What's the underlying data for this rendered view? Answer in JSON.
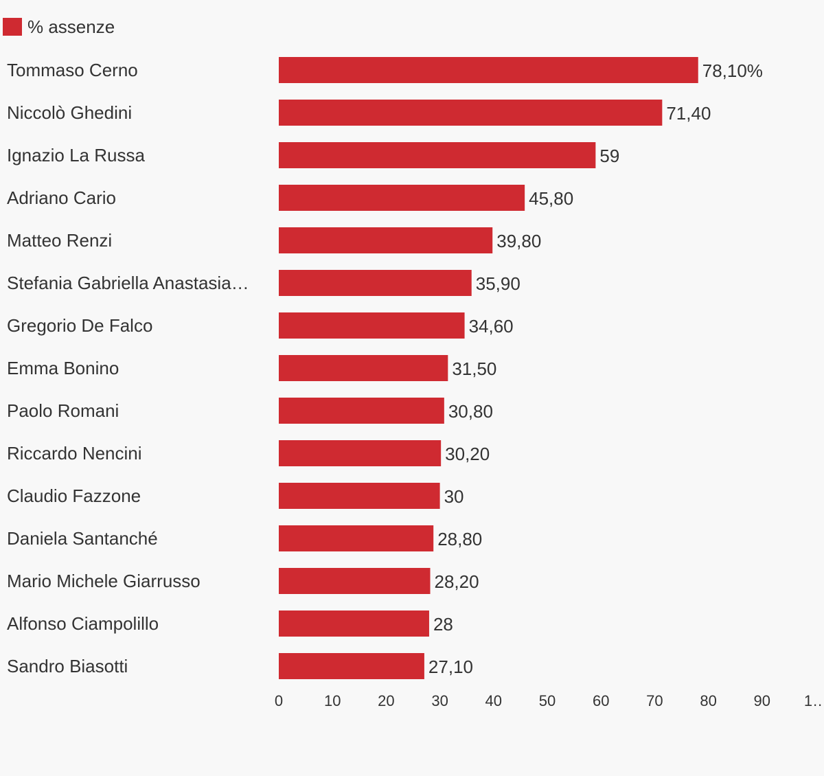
{
  "chart_data": {
    "type": "barh",
    "categories": [
      "Tommaso Cerno",
      "Niccolò Ghedini",
      "Ignazio La Russa",
      "Adriano Cario",
      "Matteo Renzi",
      "Stefania Gabriella Anastasia…",
      "Gregorio De Falco",
      "Emma Bonino",
      "Paolo Romani",
      "Riccardo Nencini",
      "Claudio Fazzone",
      "Daniela Santanché",
      "Mario Michele Giarrusso",
      "Alfonso Ciampolillo",
      "Sandro Biasotti"
    ],
    "series": [
      {
        "name": "% assenze",
        "color": "#cf2a31",
        "values": [
          78.1,
          71.4,
          59,
          45.8,
          39.8,
          35.9,
          34.6,
          31.5,
          30.8,
          30.2,
          30,
          28.8,
          28.2,
          28,
          27.1
        ],
        "value_labels": [
          "78,10%",
          "71,40",
          "59",
          "45,80",
          "39,80",
          "35,90",
          "34,60",
          "31,50",
          "30,80",
          "30,20",
          "30",
          "28,80",
          "28,20",
          "28",
          "27,10"
        ]
      }
    ],
    "xlim": [
      0,
      100
    ],
    "xticks": [
      0,
      10,
      20,
      30,
      40,
      50,
      60,
      70,
      80,
      90,
      {
        "value": 100,
        "label": "1…"
      }
    ],
    "grid": false,
    "legend": "top-left"
  }
}
